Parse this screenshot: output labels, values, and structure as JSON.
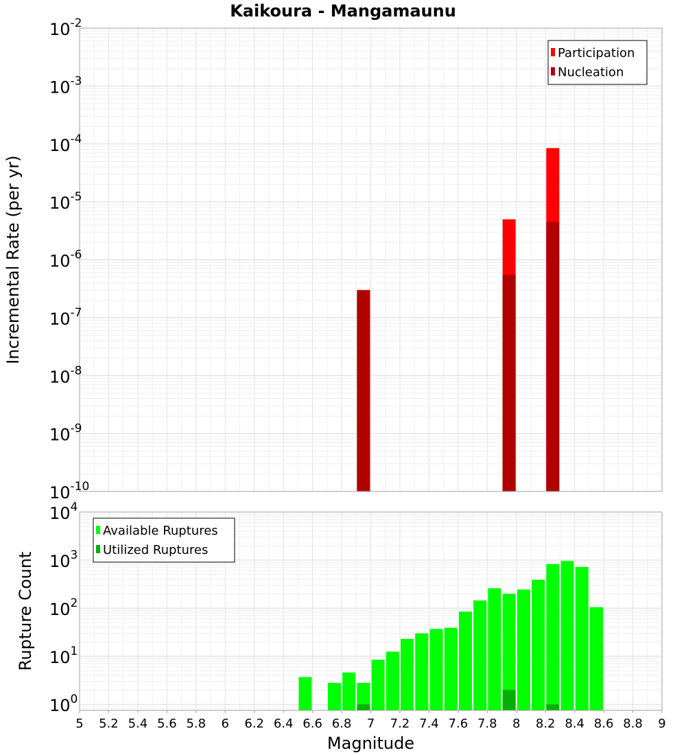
{
  "chart_data": [
    {
      "type": "bar",
      "title": "Kaikoura - Mangamaunu",
      "ylabel": "Incremental Rate (per yr)",
      "yscale": "log",
      "ylim": [
        1e-10,
        0.01
      ],
      "xlim": [
        5,
        9
      ],
      "y_tick_exponents": [
        "-2",
        "-3",
        "-4",
        "-5",
        "-6",
        "-7",
        "-8",
        "-9",
        "-10"
      ],
      "legend_position": "top-right",
      "grid": true,
      "series": [
        {
          "name": "Participation",
          "color": "#ff0000",
          "points": [
            {
              "x": 6.95,
              "y": 3e-07
            },
            {
              "x": 7.95,
              "y": 5e-06
            },
            {
              "x": 8.25,
              "y": 8.5e-05
            }
          ]
        },
        {
          "name": "Nucleation",
          "color": "#b00000",
          "points": [
            {
              "x": 6.95,
              "y": 3e-07
            },
            {
              "x": 7.95,
              "y": 5.5e-07
            },
            {
              "x": 8.25,
              "y": 4.5e-06
            }
          ]
        }
      ]
    },
    {
      "type": "bar",
      "ylabel": "Rupture Count",
      "xlabel": "Magnitude",
      "yscale": "log",
      "ylim": [
        0.75,
        10000
      ],
      "xlim": [
        5,
        9
      ],
      "x_ticks": [
        "5",
        "5.2",
        "5.4",
        "5.6",
        "5.8",
        "6",
        "6.2",
        "6.4",
        "6.6",
        "6.8",
        "7",
        "7.2",
        "7.4",
        "7.6",
        "7.8",
        "8",
        "8.2",
        "8.4",
        "8.6",
        "8.8",
        "9"
      ],
      "y_tick_exponents": [
        "4",
        "3",
        "2",
        "1",
        "0"
      ],
      "legend_position": "top-left",
      "grid": true,
      "series": [
        {
          "name": "Available Ruptures",
          "color": "#00ff00",
          "points": [
            {
              "x": 6.55,
              "y": 3.7
            },
            {
              "x": 6.75,
              "y": 2.8
            },
            {
              "x": 6.85,
              "y": 4.6
            },
            {
              "x": 6.95,
              "y": 2.8
            },
            {
              "x": 7.05,
              "y": 8.5
            },
            {
              "x": 7.15,
              "y": 12.5
            },
            {
              "x": 7.25,
              "y": 23
            },
            {
              "x": 7.35,
              "y": 30
            },
            {
              "x": 7.45,
              "y": 37
            },
            {
              "x": 7.55,
              "y": 39
            },
            {
              "x": 7.65,
              "y": 85
            },
            {
              "x": 7.75,
              "y": 145
            },
            {
              "x": 7.85,
              "y": 260
            },
            {
              "x": 7.95,
              "y": 200
            },
            {
              "x": 8.05,
              "y": 245
            },
            {
              "x": 8.15,
              "y": 390
            },
            {
              "x": 8.25,
              "y": 830
            },
            {
              "x": 8.35,
              "y": 960
            },
            {
              "x": 8.45,
              "y": 720
            },
            {
              "x": 8.55,
              "y": 105
            }
          ]
        },
        {
          "name": "Utilized Ruptures",
          "color": "#00b000",
          "points": [
            {
              "x": 6.95,
              "y": 1
            },
            {
              "x": 7.95,
              "y": 2
            },
            {
              "x": 8.25,
              "y": 1
            }
          ]
        }
      ]
    }
  ]
}
